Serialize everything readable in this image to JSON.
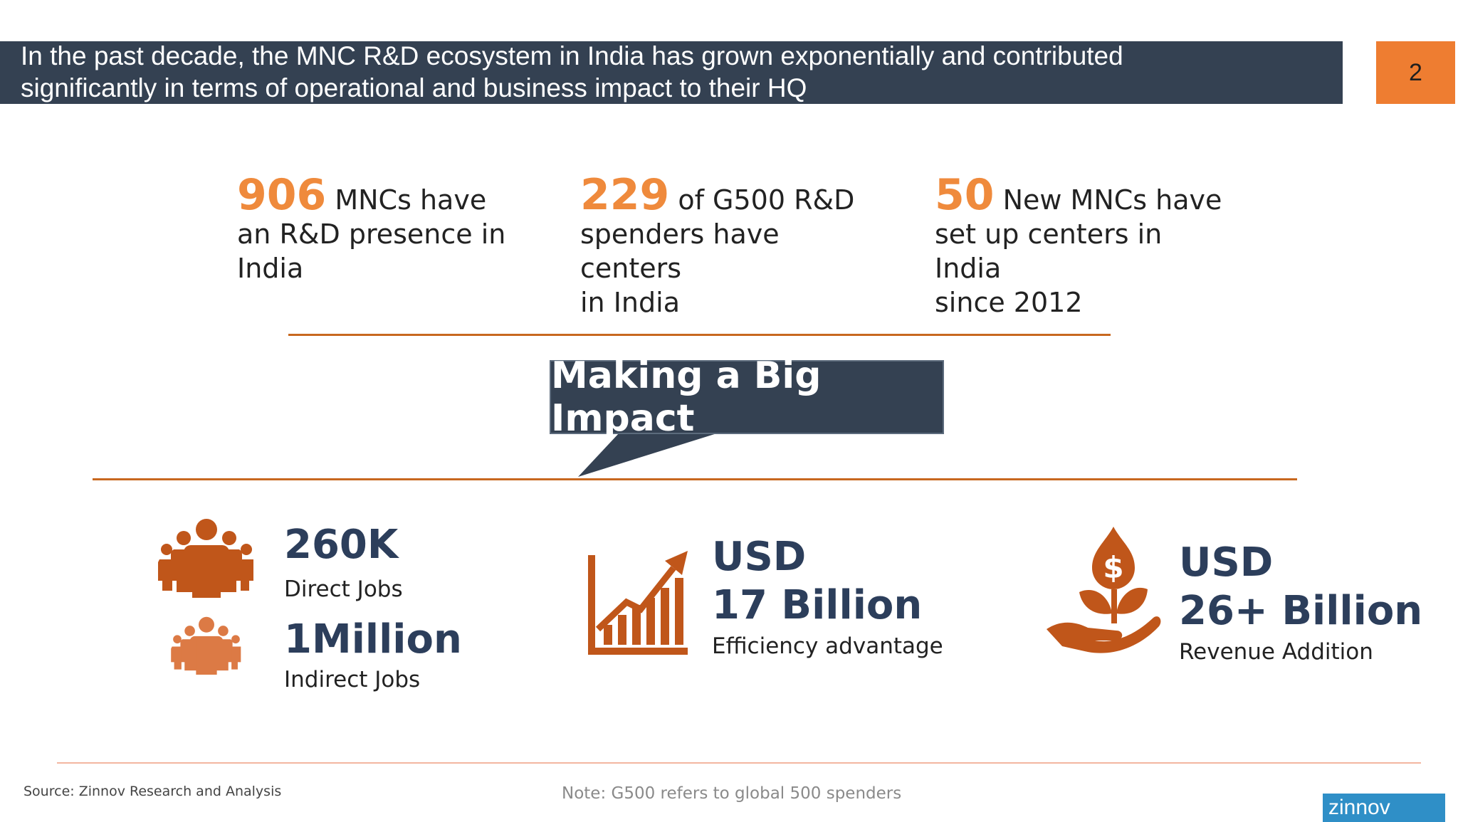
{
  "header": {
    "title_line1": "In the past decade, the MNC R&D ecosystem in India has grown exponentially and contributed",
    "title_line2": "significantly in terms of operational and business impact to their HQ",
    "page_number": "2"
  },
  "stats": [
    {
      "number": "906",
      "text_a": "MNCs have",
      "text_b": "an R&D presence in",
      "text_c": "India"
    },
    {
      "number": "229",
      "text_a": "of G500 R&D",
      "text_b": "spenders have centers",
      "text_c": "in India"
    },
    {
      "number": "50",
      "text_a": "New MNCs have",
      "text_b": "set up centers in India",
      "text_c": "since 2012"
    }
  ],
  "callout": "Making a Big Impact",
  "metrics": {
    "direct": {
      "value": "260K",
      "label": "Direct Jobs"
    },
    "indirect": {
      "value": "1Million",
      "label": "Indirect Jobs"
    },
    "efficiency": {
      "line1": "USD",
      "line2": "17 Billion",
      "label": "Efficiency advantage"
    },
    "revenue": {
      "line1": "USD",
      "line2": "26+ Billion",
      "label": "Revenue Addition"
    }
  },
  "footer": {
    "source": "Source: Zinnov Research and Analysis",
    "note": "Note: G500 refers to global 500 spenders",
    "logo": "zinnov"
  },
  "icons": [
    "people-group-icon",
    "growth-chart-icon",
    "money-plant-icon"
  ],
  "colors": {
    "accent": "#ee7d31",
    "navy": "#344152",
    "icon": "#c0561a"
  }
}
